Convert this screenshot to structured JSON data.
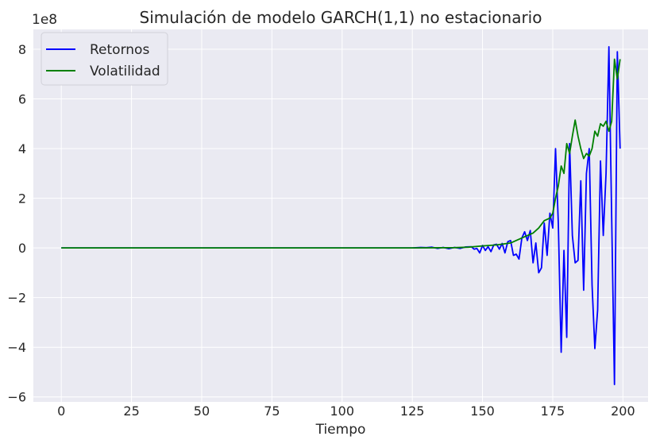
{
  "chart_data": {
    "type": "line",
    "title": "Simulación de modelo GARCH(1,1) no estacionario",
    "xlabel": "Tiempo",
    "ylabel": "",
    "y_scale_label": "1e8",
    "xlim": [
      -9.95,
      208.95
    ],
    "ylim": [
      -6.2,
      8.8
    ],
    "x_ticks": [
      0,
      25,
      50,
      75,
      100,
      125,
      150,
      175,
      200
    ],
    "x_tick_labels": [
      "0",
      "25",
      "50",
      "75",
      "100",
      "125",
      "150",
      "175",
      "200"
    ],
    "y_ticks": [
      -6,
      -4,
      -2,
      0,
      2,
      4,
      6,
      8
    ],
    "y_tick_labels": [
      "−6",
      "−4",
      "−2",
      "0",
      "2",
      "4",
      "6",
      "8"
    ],
    "grid": true,
    "legend_position": "top-left",
    "series": [
      {
        "name": "Retornos",
        "color": "#0000ff",
        "x": [
          0,
          25,
          50,
          75,
          100,
          120,
          125,
          128,
          130,
          132,
          134,
          136,
          138,
          140,
          142,
          144,
          146,
          147,
          148,
          149,
          150,
          151,
          152,
          153,
          154,
          155,
          156,
          157,
          158,
          159,
          160,
          161,
          162,
          163,
          164,
          165,
          166,
          167,
          168,
          169,
          170,
          171,
          172,
          173,
          174,
          175,
          176,
          177,
          178,
          179,
          180,
          181,
          182,
          183,
          184,
          185,
          186,
          187,
          188,
          189,
          190,
          191,
          192,
          193,
          194,
          195,
          196,
          197,
          198,
          199
        ],
        "y": [
          0,
          0,
          0,
          0,
          0,
          0,
          0,
          0.02,
          0.01,
          0.03,
          -0.02,
          0.02,
          -0.03,
          0.02,
          -0.02,
          0.04,
          0.05,
          -0.05,
          -0.02,
          -0.2,
          0.1,
          -0.1,
          0.05,
          -0.15,
          0.12,
          0.15,
          -0.05,
          0.18,
          -0.2,
          0.25,
          0.3,
          -0.3,
          -0.25,
          -0.45,
          0.4,
          0.65,
          0.3,
          0.7,
          -0.6,
          0.2,
          -1.0,
          -0.8,
          1.0,
          -0.3,
          1.4,
          0.8,
          4.0,
          1.0,
          -4.2,
          -0.1,
          -3.6,
          4.2,
          0.5,
          -0.6,
          -0.5,
          2.7,
          -1.7,
          3.0,
          4.0,
          -1.5,
          -4.05,
          -2.5,
          3.5,
          0.5,
          3.0,
          8.1,
          1.2,
          -5.5,
          7.9,
          4.0
        ]
      },
      {
        "name": "Volatilidad",
        "color": "#008000",
        "x": [
          0,
          25,
          50,
          75,
          100,
          125,
          140,
          145,
          150,
          155,
          160,
          165,
          168,
          170,
          172,
          174,
          175,
          176,
          177,
          178,
          179,
          180,
          181,
          182,
          183,
          184,
          185,
          186,
          187,
          188,
          189,
          190,
          191,
          192,
          193,
          194,
          195,
          196,
          197,
          198,
          199
        ],
        "y": [
          0,
          0,
          0,
          0,
          0,
          0,
          0.01,
          0.03,
          0.08,
          0.12,
          0.2,
          0.45,
          0.6,
          0.8,
          1.1,
          1.2,
          1.4,
          2.0,
          2.5,
          3.3,
          3.0,
          4.2,
          3.8,
          4.5,
          5.15,
          4.5,
          4.0,
          3.6,
          3.8,
          3.7,
          4.0,
          4.7,
          4.5,
          5.0,
          4.9,
          5.1,
          4.7,
          5.1,
          7.6,
          6.8,
          7.6
        ]
      }
    ]
  }
}
